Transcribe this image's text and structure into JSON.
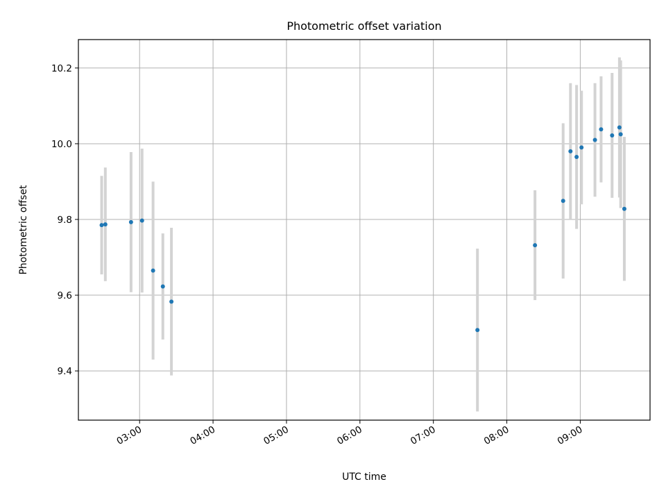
{
  "chart_data": {
    "type": "scatter",
    "title": "Photometric offset variation",
    "xlabel": "UTC time",
    "ylabel": "Photometric offset",
    "x_tick_labels": [
      "03:00",
      "04:00",
      "05:00",
      "06:00",
      "07:00",
      "08:00",
      "09:00"
    ],
    "x_tick_values": [
      "03:00",
      "04:00",
      "05:00",
      "06:00",
      "07:00",
      "08:00",
      "09:00"
    ],
    "xlim": [
      "02:10",
      "09:57"
    ],
    "y_tick_labels": [
      "9.4",
      "9.6",
      "9.8",
      "10.0",
      "10.2"
    ],
    "y_tick_values": [
      9.4,
      9.6,
      9.8,
      10.0,
      10.2
    ],
    "ylim": [
      9.27,
      10.275
    ],
    "grid": true,
    "colors": {
      "point": "#1f77b4",
      "errorbar": "#d3d3d3",
      "grid": "#b0b0b0"
    },
    "points": [
      {
        "x": "02:29",
        "y": 9.785,
        "err": 0.13
      },
      {
        "x": "02:32",
        "y": 9.787,
        "err": 0.15
      },
      {
        "x": "02:53",
        "y": 9.793,
        "err": 0.185
      },
      {
        "x": "03:02",
        "y": 9.797,
        "err": 0.19
      },
      {
        "x": "03:11",
        "y": 9.665,
        "err": 0.235
      },
      {
        "x": "03:19",
        "y": 9.623,
        "err": 0.14
      },
      {
        "x": "03:26",
        "y": 9.583,
        "err": 0.195
      },
      {
        "x": "07:36",
        "y": 9.508,
        "err": 0.215
      },
      {
        "x": "08:23",
        "y": 9.732,
        "err": 0.145
      },
      {
        "x": "08:46",
        "y": 9.849,
        "err": 0.205
      },
      {
        "x": "08:52",
        "y": 9.98,
        "err": 0.18
      },
      {
        "x": "08:57",
        "y": 9.965,
        "err": 0.19
      },
      {
        "x": "09:01",
        "y": 9.99,
        "err": 0.15
      },
      {
        "x": "09:12",
        "y": 10.01,
        "err": 0.15
      },
      {
        "x": "09:17",
        "y": 10.038,
        "err": 0.14
      },
      {
        "x": "09:26",
        "y": 10.022,
        "err": 0.165
      },
      {
        "x": "09:32",
        "y": 10.043,
        "err": 0.185
      },
      {
        "x": "09:33",
        "y": 10.025,
        "err": 0.195
      },
      {
        "x": "09:36",
        "y": 9.828,
        "err": 0.19
      }
    ]
  }
}
